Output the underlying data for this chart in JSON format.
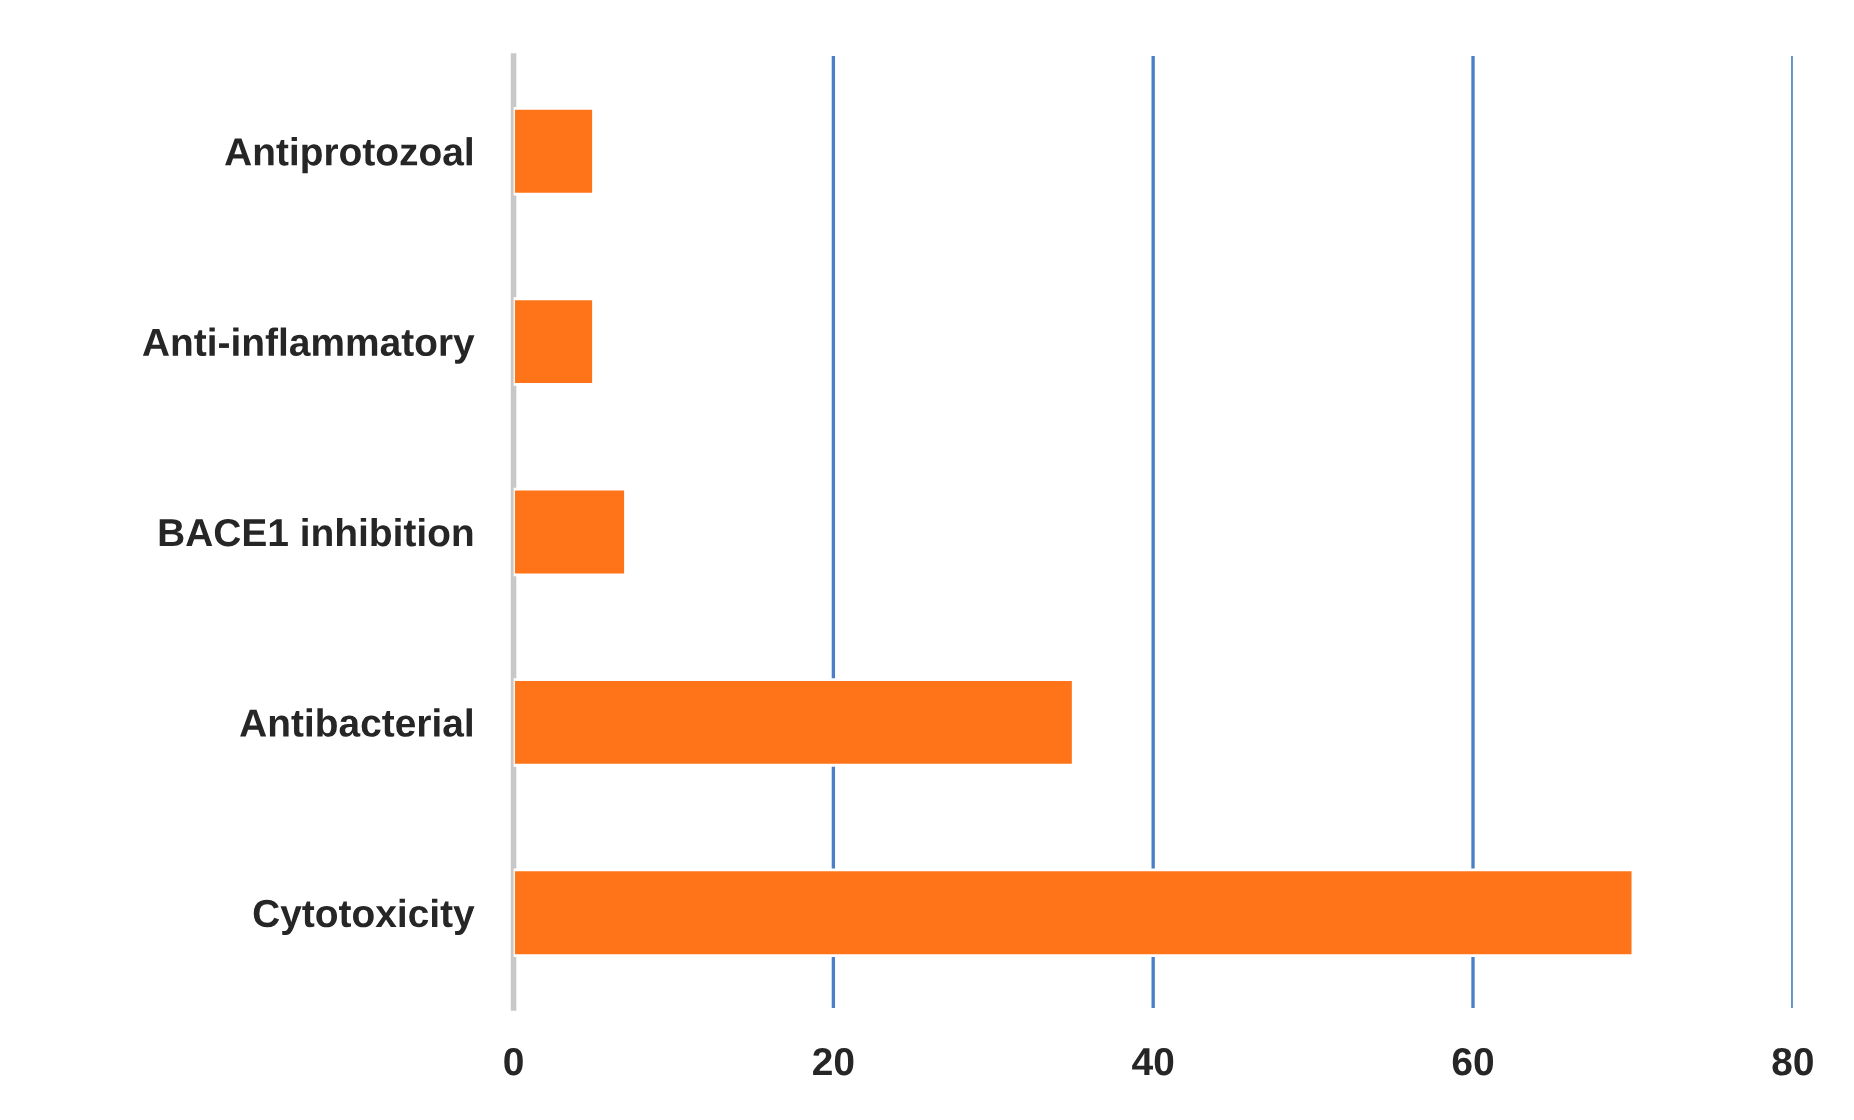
{
  "chart_data": {
    "type": "bar",
    "orientation": "horizontal",
    "categories": [
      "Antiprotozoal",
      "Anti-inflammatory",
      "BACE1 inhibition",
      "Antibacterial",
      "Cytotoxicity"
    ],
    "values": [
      5,
      5,
      7,
      35,
      70
    ],
    "color": "#ff7319",
    "xlim": [
      0,
      80
    ],
    "xticks": [
      0,
      20,
      40,
      60,
      80
    ],
    "grid": "x"
  }
}
